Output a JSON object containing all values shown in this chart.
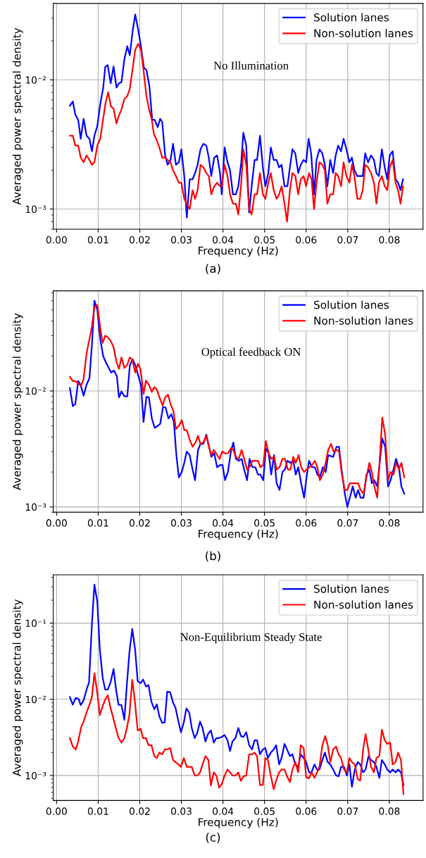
{
  "chart_data": [
    {
      "type": "line",
      "xlabel": "Frequency (Hz)",
      "ylabel": "Averaged power spectral density",
      "annotations": [
        "No Illumination",
        "(a)"
      ],
      "log": "y",
      "grid": true,
      "legend": "top right",
      "xlim": [
        -0.0008,
        0.0881
      ],
      "xticks": [
        {
          "value": 0,
          "label": "0.00"
        },
        {
          "value": 0.01,
          "label": "0.01"
        },
        {
          "value": 0.02,
          "label": "0.02"
        },
        {
          "value": 0.03,
          "label": "0.03"
        },
        {
          "value": 0.04,
          "label": "0.04"
        },
        {
          "value": 0.05,
          "label": "0.05"
        },
        {
          "value": 0.06,
          "label": "0.06"
        },
        {
          "value": 0.07,
          "label": "0.07"
        },
        {
          "value": 0.08,
          "label": "0.08"
        }
      ],
      "ylim": [
        0.0007,
        0.039
      ],
      "yticks": [
        {
          "value": 0.001,
          "label": "10⁻³"
        },
        {
          "value": 0.01,
          "label": "10⁻²"
        }
      ],
      "series": [
        {
          "name": "Solution lanes",
          "color": "#0000ff",
          "x": [
            0.0032,
            0.0039,
            0.0045,
            0.0052,
            0.0058,
            0.0065,
            0.0072,
            0.0079,
            0.0085,
            0.0091,
            0.0098,
            0.0105,
            0.0112,
            0.0117,
            0.0123,
            0.013,
            0.0137,
            0.0144,
            0.015,
            0.0156,
            0.0163,
            0.017,
            0.0176,
            0.0183,
            0.0189,
            0.0196,
            0.0203,
            0.021,
            0.0216,
            0.0223,
            0.023,
            0.0236,
            0.0243,
            0.0249,
            0.0254,
            0.0261,
            0.0267,
            0.0274,
            0.028,
            0.0287,
            0.0294,
            0.03,
            0.0307,
            0.0313,
            0.032,
            0.0327,
            0.0333,
            0.0339,
            0.0346,
            0.0353,
            0.036,
            0.0366,
            0.0372,
            0.0379,
            0.0386,
            0.0393,
            0.0397,
            0.0404,
            0.0411,
            0.0417,
            0.0424,
            0.0431,
            0.0437,
            0.0444,
            0.0449,
            0.0456,
            0.0463,
            0.0469,
            0.0476,
            0.0482,
            0.0489,
            0.0496,
            0.0502,
            0.0509,
            0.0515,
            0.0522,
            0.0529,
            0.0535,
            0.0541,
            0.0548,
            0.0555,
            0.0561,
            0.0567,
            0.0574,
            0.0581,
            0.0587,
            0.0594,
            0.06,
            0.0606,
            0.0612,
            0.0619,
            0.0625,
            0.0632,
            0.0639,
            0.0645,
            0.0651,
            0.0658,
            0.0665,
            0.0671,
            0.0677,
            0.0684,
            0.069,
            0.0697,
            0.0704,
            0.071,
            0.0716,
            0.0723,
            0.073,
            0.0736,
            0.0742,
            0.0749,
            0.0756,
            0.0763,
            0.0769,
            0.0775,
            0.0782,
            0.0789,
            0.0795,
            0.0801,
            0.0808,
            0.0815,
            0.0821,
            0.0827,
            0.0833
          ],
          "values": [
            0.0063,
            0.0068,
            0.0054,
            0.0049,
            0.0035,
            0.005,
            0.0037,
            0.0035,
            0.0028,
            0.0037,
            0.0044,
            0.0065,
            0.0086,
            0.0126,
            0.013,
            0.0094,
            0.0127,
            0.0087,
            0.0094,
            0.0096,
            0.0144,
            0.0182,
            0.0155,
            0.024,
            0.032,
            0.0247,
            0.018,
            0.0124,
            0.0119,
            0.009,
            0.0049,
            0.0049,
            0.0043,
            0.005,
            0.0047,
            0.0026,
            0.0022,
            0.0024,
            0.0032,
            0.0022,
            0.0023,
            0.0029,
            0.0018,
            0.00086,
            0.0017,
            0.0017,
            0.0019,
            0.0022,
            0.0029,
            0.0032,
            0.0031,
            0.0025,
            0.0018,
            0.0025,
            0.0026,
            0.0019,
            0.0013,
            0.003,
            0.0023,
            0.002,
            0.0013,
            0.0013,
            0.0015,
            0.0023,
            0.0039,
            0.0031,
            0.00094,
            0.0015,
            0.0024,
            0.0024,
            0.0037,
            0.0021,
            0.0015,
            0.0019,
            0.003,
            0.0024,
            0.0024,
            0.0021,
            0.0022,
            0.0015,
            0.0015,
            0.0021,
            0.0029,
            0.0027,
            0.0019,
            0.0022,
            0.0024,
            0.0023,
            0.0035,
            0.0027,
            0.0013,
            0.0024,
            0.0029,
            0.0027,
            0.0022,
            0.0015,
            0.0024,
            0.0019,
            0.0026,
            0.0031,
            0.0028,
            0.0035,
            0.0029,
            0.0023,
            0.0025,
            0.002,
            0.0018,
            0.0018,
            0.0018,
            0.0027,
            0.0023,
            0.0026,
            0.0024,
            0.0019,
            0.0018,
            0.0029,
            0.0021,
            0.0017,
            0.0026,
            0.0028,
            0.0017,
            0.0016,
            0.0014,
            0.0017
          ]
        },
        {
          "name": "Non-solution lanes",
          "color": "#ff0000",
          "x": [
            0.0032,
            0.0039,
            0.0045,
            0.0052,
            0.0058,
            0.0065,
            0.0072,
            0.0079,
            0.0085,
            0.0091,
            0.0098,
            0.0105,
            0.0112,
            0.0118,
            0.0124,
            0.0131,
            0.0137,
            0.0144,
            0.015,
            0.0156,
            0.0163,
            0.017,
            0.0176,
            0.0183,
            0.0189,
            0.0196,
            0.0203,
            0.0209,
            0.0216,
            0.0222,
            0.0229,
            0.0234,
            0.0241,
            0.0247,
            0.0254,
            0.0261,
            0.0267,
            0.0274,
            0.028,
            0.0287,
            0.0294,
            0.03,
            0.0307,
            0.0313,
            0.032,
            0.0327,
            0.0333,
            0.0339,
            0.0346,
            0.0353,
            0.036,
            0.0366,
            0.0372,
            0.0379,
            0.0386,
            0.0393,
            0.0397,
            0.0404,
            0.0411,
            0.0417,
            0.0424,
            0.0431,
            0.0437,
            0.0444,
            0.0449,
            0.0456,
            0.0463,
            0.0469,
            0.0476,
            0.0482,
            0.0489,
            0.0496,
            0.0502,
            0.0509,
            0.0515,
            0.0522,
            0.0529,
            0.0535,
            0.0541,
            0.0548,
            0.0554,
            0.0561,
            0.0567,
            0.0574,
            0.0581,
            0.0587,
            0.0594,
            0.06,
            0.0607,
            0.0613,
            0.0619,
            0.0625,
            0.0632,
            0.0639,
            0.0645,
            0.0651,
            0.0658,
            0.0665,
            0.0671,
            0.0677,
            0.0684,
            0.069,
            0.0697,
            0.0704,
            0.071,
            0.0716,
            0.0723,
            0.073,
            0.0736,
            0.0742,
            0.0749,
            0.0756,
            0.0763,
            0.0769,
            0.0775,
            0.0782,
            0.0789,
            0.0795,
            0.0801,
            0.0808,
            0.0815,
            0.0821,
            0.0827,
            0.0833
          ],
          "values": [
            0.0037,
            0.0037,
            0.0031,
            0.0031,
            0.0025,
            0.0023,
            0.0026,
            0.0024,
            0.0022,
            0.0023,
            0.0031,
            0.0035,
            0.005,
            0.0067,
            0.008,
            0.0062,
            0.006,
            0.0046,
            0.0053,
            0.0059,
            0.0071,
            0.0075,
            0.0085,
            0.0123,
            0.017,
            0.019,
            0.017,
            0.0119,
            0.0075,
            0.006,
            0.0049,
            0.0038,
            0.0034,
            0.003,
            0.0025,
            0.0025,
            0.0024,
            0.0023,
            0.002,
            0.0018,
            0.0016,
            0.0016,
            0.0012,
            0.0011,
            0.001,
            0.0014,
            0.0012,
            0.0014,
            0.0022,
            0.0021,
            0.0019,
            0.0018,
            0.0013,
            0.0015,
            0.0016,
            0.0015,
            0.0015,
            0.0022,
            0.0018,
            0.0013,
            0.0011,
            0.0011,
            0.00091,
            0.0016,
            0.0029,
            0.0022,
            0.001,
            0.00091,
            0.0013,
            0.0013,
            0.0019,
            0.0013,
            0.0012,
            0.0016,
            0.0019,
            0.0014,
            0.0012,
            0.0013,
            0.0015,
            0.0011,
            0.0008,
            0.0014,
            0.0019,
            0.0018,
            0.0013,
            0.0017,
            0.0018,
            0.0015,
            0.0019,
            0.0017,
            0.001,
            0.0016,
            0.0023,
            0.0022,
            0.002,
            0.0011,
            0.0013,
            0.0013,
            0.0019,
            0.0018,
            0.0015,
            0.0023,
            0.0018,
            0.0016,
            0.0022,
            0.0018,
            0.0012,
            0.0012,
            0.0014,
            0.0022,
            0.0021,
            0.0019,
            0.0016,
            0.0011,
            0.0016,
            0.0018,
            0.0015,
            0.0014,
            0.0021,
            0.0024,
            0.0016,
            0.0014,
            0.0011,
            0.0015
          ]
        }
      ]
    },
    {
      "type": "line",
      "xlabel": "Frequency (Hz)",
      "ylabel": "Averaged power spectral density",
      "annotations": [
        "Optical feedback ON",
        "(b)"
      ],
      "log": "y",
      "grid": true,
      "legend": "top right",
      "xlim": [
        -0.0008,
        0.0881
      ],
      "xticks": [
        {
          "value": 0,
          "label": "0.00"
        },
        {
          "value": 0.01,
          "label": "0.01"
        },
        {
          "value": 0.02,
          "label": "0.02"
        },
        {
          "value": 0.03,
          "label": "0.03"
        },
        {
          "value": 0.04,
          "label": "0.04"
        },
        {
          "value": 0.05,
          "label": "0.05"
        },
        {
          "value": 0.06,
          "label": "0.06"
        },
        {
          "value": 0.07,
          "label": "0.07"
        },
        {
          "value": 0.08,
          "label": "0.08"
        }
      ],
      "ylim": [
        0.0009,
        0.073
      ],
      "yticks": [
        {
          "value": 0.001,
          "label": "10⁻³"
        },
        {
          "value": 0.01,
          "label": "10⁻²"
        }
      ],
      "series": [
        {
          "name": "Solution lanes",
          "color": "#0000ff",
          "x": [
            0.0032,
            0.0039,
            0.0045,
            0.0052,
            0.0058,
            0.0065,
            0.0072,
            0.0079,
            0.0085,
            0.0091,
            0.0098,
            0.0105,
            0.0112,
            0.0118,
            0.0125,
            0.0131,
            0.0138,
            0.0145,
            0.015,
            0.0156,
            0.0163,
            0.017,
            0.0176,
            0.0183,
            0.0189,
            0.0196,
            0.0203,
            0.0209,
            0.0216,
            0.0222,
            0.0229,
            0.0236,
            0.0243,
            0.0249,
            0.0256,
            0.0262,
            0.0269,
            0.0276,
            0.0282,
            0.0288,
            0.0294,
            0.0301,
            0.0307,
            0.0313,
            0.032,
            0.0327,
            0.0333,
            0.034,
            0.0346,
            0.0353,
            0.036,
            0.0366,
            0.0372,
            0.0379,
            0.0386,
            0.0393,
            0.0399,
            0.0405,
            0.0412,
            0.0419,
            0.0425,
            0.0431,
            0.0438,
            0.0445,
            0.0451,
            0.0458,
            0.0464,
            0.0471,
            0.0478,
            0.0484,
            0.049,
            0.0497,
            0.0503,
            0.051,
            0.0516,
            0.0523,
            0.0529,
            0.0536,
            0.0543,
            0.0549,
            0.0555,
            0.0562,
            0.0569,
            0.0575,
            0.0581,
            0.0588,
            0.0595,
            0.0601,
            0.0607,
            0.0614,
            0.0621,
            0.0627,
            0.0633,
            0.064,
            0.0647,
            0.0653,
            0.0665,
            0.0673,
            0.0679,
            0.0686,
            0.0693,
            0.0699,
            0.0705,
            0.0712,
            0.0719,
            0.0725,
            0.0731,
            0.0738,
            0.0745,
            0.0752,
            0.0758,
            0.0764,
            0.0771,
            0.0783,
            0.079,
            0.0797,
            0.0803,
            0.081,
            0.0816,
            0.0823,
            0.0829,
            0.0836
          ],
          "values": [
            0.0106,
            0.0074,
            0.0077,
            0.0122,
            0.0112,
            0.0091,
            0.0113,
            0.0129,
            0.025,
            0.06,
            0.05,
            0.028,
            0.02,
            0.0178,
            0.0159,
            0.0144,
            0.015,
            0.0134,
            0.0088,
            0.0099,
            0.009,
            0.009,
            0.0166,
            0.0187,
            0.0168,
            0.0137,
            0.0112,
            0.0054,
            0.0089,
            0.0088,
            0.0058,
            0.0048,
            0.005,
            0.0052,
            0.0073,
            0.0072,
            0.0058,
            0.0063,
            0.0054,
            0.0028,
            0.0018,
            0.002,
            0.0024,
            0.003,
            0.0028,
            0.0021,
            0.0017,
            0.0031,
            0.0035,
            0.0035,
            0.0042,
            0.0034,
            0.0027,
            0.0029,
            0.0022,
            0.0023,
            0.0023,
            0.0017,
            0.002,
            0.003,
            0.0036,
            0.0026,
            0.0025,
            0.0026,
            0.0021,
            0.0017,
            0.0026,
            0.0022,
            0.0022,
            0.0019,
            0.0019,
            0.0017,
            0.0032,
            0.0029,
            0.0019,
            0.0028,
            0.0016,
            0.0014,
            0.002,
            0.0021,
            0.0025,
            0.0024,
            0.0025,
            0.0019,
            0.0022,
            0.0016,
            0.0012,
            0.0018,
            0.0025,
            0.0022,
            0.0022,
            0.0019,
            0.0018,
            0.0022,
            0.002,
            0.0028,
            0.0027,
            0.0033,
            0.0033,
            0.002,
            0.0013,
            0.001,
            0.0012,
            0.0015,
            0.0012,
            0.0014,
            0.0012,
            0.0012,
            0.0019,
            0.0021,
            0.0016,
            0.0017,
            0.0015,
            0.0039,
            0.0033,
            0.0015,
            0.0017,
            0.0021,
            0.0026,
            0.0022,
            0.0015,
            0.0013
          ]
        },
        {
          "name": "Non-solution lanes",
          "color": "#ff0000",
          "x": [
            0.0032,
            0.0039,
            0.0046,
            0.0053,
            0.0059,
            0.0065,
            0.0072,
            0.0079,
            0.0085,
            0.0091,
            0.0098,
            0.0105,
            0.0111,
            0.0117,
            0.0123,
            0.013,
            0.0137,
            0.0144,
            0.015,
            0.0156,
            0.0163,
            0.017,
            0.0176,
            0.0182,
            0.0189,
            0.0196,
            0.0202,
            0.0209,
            0.0215,
            0.0222,
            0.0229,
            0.0235,
            0.0241,
            0.0248,
            0.0255,
            0.0261,
            0.0268,
            0.0274,
            0.0281,
            0.0287,
            0.0294,
            0.0301,
            0.0307,
            0.0313,
            0.032,
            0.0327,
            0.0334,
            0.034,
            0.0346,
            0.0353,
            0.036,
            0.0366,
            0.0372,
            0.0378,
            0.0386,
            0.0392,
            0.0398,
            0.0405,
            0.0412,
            0.0419,
            0.0425,
            0.0431,
            0.0438,
            0.0445,
            0.0451,
            0.0458,
            0.0464,
            0.0471,
            0.0478,
            0.0484,
            0.049,
            0.0497,
            0.0503,
            0.051,
            0.0516,
            0.0523,
            0.0529,
            0.0536,
            0.0543,
            0.0549,
            0.0556,
            0.0562,
            0.0569,
            0.0575,
            0.0582,
            0.0588,
            0.0595,
            0.0601,
            0.0608,
            0.0614,
            0.0621,
            0.0627,
            0.0633,
            0.064,
            0.0647,
            0.0653,
            0.066,
            0.0666,
            0.0673,
            0.0679,
            0.0686,
            0.0693,
            0.0699,
            0.0705,
            0.0712,
            0.0719,
            0.0725,
            0.0731,
            0.0738,
            0.0745,
            0.0752,
            0.0758,
            0.0764,
            0.0771,
            0.0777,
            0.0783,
            0.079,
            0.0797,
            0.0803,
            0.081,
            0.0816,
            0.0823,
            0.0829,
            0.0836
          ],
          "values": [
            0.0132,
            0.0122,
            0.0121,
            0.0115,
            0.0111,
            0.0127,
            0.021,
            0.028,
            0.036,
            0.053,
            0.055,
            0.035,
            0.026,
            0.03,
            0.029,
            0.027,
            0.024,
            0.0178,
            0.0155,
            0.0195,
            0.0158,
            0.0168,
            0.0195,
            0.0187,
            0.0144,
            0.0172,
            0.0153,
            0.0094,
            0.0123,
            0.0113,
            0.0098,
            0.0108,
            0.0103,
            0.0087,
            0.0075,
            0.0088,
            0.0093,
            0.0077,
            0.0067,
            0.0047,
            0.005,
            0.0056,
            0.0046,
            0.0046,
            0.0038,
            0.0033,
            0.0036,
            0.0041,
            0.0035,
            0.0036,
            0.0041,
            0.0033,
            0.0028,
            0.0031,
            0.0028,
            0.0026,
            0.003,
            0.0029,
            0.0029,
            0.0032,
            0.0031,
            0.0027,
            0.0026,
            0.0031,
            0.0026,
            0.0021,
            0.0022,
            0.0025,
            0.0025,
            0.0025,
            0.0022,
            0.0023,
            0.0037,
            0.0029,
            0.0026,
            0.0027,
            0.0021,
            0.0022,
            0.0026,
            0.0026,
            0.0021,
            0.0021,
            0.0027,
            0.0024,
            0.0028,
            0.0022,
            0.002,
            0.0021,
            0.0022,
            0.0023,
            0.0025,
            0.0022,
            0.0017,
            0.0019,
            0.0024,
            0.0031,
            0.0035,
            0.003,
            0.0031,
            0.003,
            0.0019,
            0.0014,
            0.0014,
            0.0016,
            0.0016,
            0.0016,
            0.0016,
            0.0014,
            0.0013,
            0.0018,
            0.0024,
            0.002,
            0.0015,
            0.0012,
            0.0026,
            0.0059,
            0.0042,
            0.0017,
            0.002,
            0.0019,
            0.0024,
            0.0021,
            0.0024,
            0.0018
          ]
        }
      ]
    },
    {
      "type": "line",
      "xlabel": "Frequency (Hz)",
      "ylabel": "Averaged power spectral density",
      "annotations": [
        "Non-Equilibrium Steady State",
        "(c)"
      ],
      "log": "y",
      "grid": true,
      "legend": "top right",
      "xlim": [
        -0.0008,
        0.0881
      ],
      "xticks": [
        {
          "value": 0,
          "label": "0.00"
        },
        {
          "value": 0.01,
          "label": "0.01"
        },
        {
          "value": 0.02,
          "label": "0.02"
        },
        {
          "value": 0.03,
          "label": "0.03"
        },
        {
          "value": 0.04,
          "label": "0.04"
        },
        {
          "value": 0.05,
          "label": "0.05"
        },
        {
          "value": 0.06,
          "label": "0.06"
        },
        {
          "value": 0.07,
          "label": "0.07"
        },
        {
          "value": 0.08,
          "label": "0.08"
        }
      ],
      "ylim": [
        0.00047,
        0.43
      ],
      "yticks": [
        {
          "value": 0.001,
          "label": "10⁻³"
        },
        {
          "value": 0.01,
          "label": "10⁻²"
        },
        {
          "value": 0.1,
          "label": "10⁻¹"
        }
      ],
      "series": [
        {
          "name": "Solution lanes",
          "color": "#0000ff",
          "x": [
            0.0032,
            0.0039,
            0.0046,
            0.0053,
            0.0058,
            0.0065,
            0.0072,
            0.0078,
            0.0085,
            0.0091,
            0.0098,
            0.0104,
            0.0111,
            0.0117,
            0.0123,
            0.013,
            0.0137,
            0.0143,
            0.0149,
            0.0156,
            0.0163,
            0.0169,
            0.0175,
            0.0182,
            0.0189,
            0.0195,
            0.0202,
            0.0208,
            0.0215,
            0.0221,
            0.0228,
            0.0235,
            0.0241,
            0.0247,
            0.0254,
            0.026,
            0.0266,
            0.0273,
            0.028,
            0.0286,
            0.0293,
            0.0299,
            0.0306,
            0.0312,
            0.0319,
            0.0325,
            0.0332,
            0.0338,
            0.0345,
            0.0351,
            0.0358,
            0.0364,
            0.0371,
            0.0378,
            0.0384,
            0.039,
            0.0397,
            0.0404,
            0.0411,
            0.0417,
            0.0423,
            0.043,
            0.0437,
            0.0443,
            0.0449,
            0.0456,
            0.0463,
            0.047,
            0.0476,
            0.0482,
            0.0489,
            0.0496,
            0.0502,
            0.0508,
            0.0515,
            0.0522,
            0.0528,
            0.0535,
            0.0541,
            0.0548,
            0.0554,
            0.0561,
            0.0567,
            0.0574,
            0.0581,
            0.0587,
            0.0594,
            0.06,
            0.0607,
            0.0613,
            0.062,
            0.0626,
            0.0632,
            0.0639,
            0.0645,
            0.0652,
            0.0658,
            0.0665,
            0.0672,
            0.0678,
            0.0684,
            0.0691,
            0.0698,
            0.0704,
            0.071,
            0.0717,
            0.0724,
            0.073,
            0.0737,
            0.0743,
            0.075,
            0.0756,
            0.0763,
            0.0769,
            0.0776,
            0.0782,
            0.0789,
            0.0795,
            0.0802,
            0.0808,
            0.0815,
            0.0821,
            0.0828,
            0.0834
          ],
          "values": [
            0.0107,
            0.0085,
            0.0104,
            0.0101,
            0.0084,
            0.0097,
            0.0134,
            0.0166,
            0.098,
            0.32,
            0.19,
            0.045,
            0.0189,
            0.0134,
            0.0134,
            0.0169,
            0.025,
            0.0134,
            0.0085,
            0.0084,
            0.0054,
            0.0156,
            0.041,
            0.084,
            0.044,
            0.0173,
            0.0163,
            0.0182,
            0.0147,
            0.0154,
            0.0093,
            0.0074,
            0.0086,
            0.006,
            0.0049,
            0.005,
            0.0126,
            0.0124,
            0.0091,
            0.0077,
            0.0051,
            0.0037,
            0.005,
            0.0076,
            0.0067,
            0.0042,
            0.0031,
            0.0036,
            0.0051,
            0.0042,
            0.0028,
            0.0035,
            0.0039,
            0.0027,
            0.0031,
            0.0031,
            0.0032,
            0.0034,
            0.0029,
            0.0021,
            0.0028,
            0.0031,
            0.0042,
            0.0033,
            0.0032,
            0.0037,
            0.0025,
            0.0022,
            0.0029,
            0.0029,
            0.0019,
            0.0022,
            0.0023,
            0.0017,
            0.002,
            0.0022,
            0.0025,
            0.0014,
            0.0017,
            0.0026,
            0.0022,
            0.0018,
            0.0019,
            0.0014,
            0.0013,
            0.0019,
            0.0017,
            0.0015,
            0.0011,
            0.0011,
            0.0014,
            0.0012,
            0.0012,
            0.0016,
            0.002,
            0.0015,
            0.0014,
            0.0012,
            0.001,
            0.00098,
            0.0013,
            0.0013,
            0.001,
            0.0014,
            0.00071,
            0.0012,
            0.0015,
            0.0014,
            0.0011,
            0.0012,
            0.0018,
            0.0016,
            0.0015,
            0.0013,
            0.00093,
            0.0016,
            0.0014,
            0.0012,
            0.0011,
            0.0012,
            0.0011,
            0.0012,
            0.0011,
            0.00075
          ]
        },
        {
          "name": "Non-solution lanes",
          "color": "#ff0000",
          "x": [
            0.0032,
            0.0039,
            0.0046,
            0.0052,
            0.0059,
            0.0065,
            0.0072,
            0.0078,
            0.0085,
            0.0091,
            0.0098,
            0.0104,
            0.0111,
            0.0117,
            0.0123,
            0.013,
            0.0137,
            0.0143,
            0.0149,
            0.0156,
            0.0163,
            0.0169,
            0.0175,
            0.0182,
            0.0188,
            0.0195,
            0.0202,
            0.0208,
            0.0215,
            0.0221,
            0.0228,
            0.0235,
            0.0241,
            0.0247,
            0.0254,
            0.026,
            0.0267,
            0.0273,
            0.028,
            0.0286,
            0.0293,
            0.0299,
            0.0306,
            0.0313,
            0.0319,
            0.0325,
            0.0332,
            0.0339,
            0.0345,
            0.0351,
            0.0358,
            0.0365,
            0.0371,
            0.0378,
            0.0384,
            0.0391,
            0.0397,
            0.0404,
            0.0411,
            0.0417,
            0.0423,
            0.043,
            0.0437,
            0.0443,
            0.0449,
            0.0456,
            0.0463,
            0.047,
            0.0476,
            0.0482,
            0.0489,
            0.0496,
            0.0502,
            0.0508,
            0.0515,
            0.0522,
            0.0528,
            0.0535,
            0.0541,
            0.0548,
            0.0555,
            0.0561,
            0.0567,
            0.0574,
            0.0581,
            0.0587,
            0.0594,
            0.06,
            0.0607,
            0.0613,
            0.062,
            0.0626,
            0.0632,
            0.0639,
            0.0646,
            0.0652,
            0.0658,
            0.0665,
            0.0672,
            0.0678,
            0.0684,
            0.0691,
            0.0698,
            0.0704,
            0.071,
            0.0717,
            0.0724,
            0.073,
            0.0737,
            0.0743,
            0.075,
            0.0756,
            0.0763,
            0.0769,
            0.0776,
            0.0782,
            0.0789,
            0.0795,
            0.0802,
            0.0808,
            0.0815,
            0.0821,
            0.0828,
            0.0834
          ],
          "values": [
            0.0031,
            0.0024,
            0.0022,
            0.0028,
            0.0043,
            0.0051,
            0.0067,
            0.0082,
            0.0107,
            0.022,
            0.012,
            0.0062,
            0.0082,
            0.01,
            0.0113,
            0.0076,
            0.0055,
            0.0041,
            0.0031,
            0.0027,
            0.0031,
            0.0042,
            0.0062,
            0.018,
            0.0098,
            0.0039,
            0.0041,
            0.0031,
            0.0031,
            0.0025,
            0.0025,
            0.0018,
            0.0017,
            0.002,
            0.0019,
            0.0022,
            0.0022,
            0.0023,
            0.0016,
            0.0015,
            0.0014,
            0.0013,
            0.0017,
            0.0013,
            0.0013,
            0.0013,
            0.001,
            0.001,
            0.0011,
            0.0014,
            0.0018,
            0.0016,
            0.00074,
            0.0011,
            0.001,
            0.00069,
            0.00077,
            0.001,
            0.0012,
            0.0011,
            0.001,
            0.001,
            0.0011,
            0.00085,
            0.00097,
            0.001,
            0.0019,
            0.0019,
            0.002,
            0.0018,
            0.00075,
            0.00075,
            0.0017,
            0.0016,
            0.001,
            0.00066,
            0.00086,
            0.0011,
            0.0012,
            0.0012,
            0.00095,
            0.00082,
            0.0012,
            0.0015,
            0.0011,
            0.0025,
            0.0023,
            0.00095,
            0.00092,
            0.0011,
            0.00093,
            0.0011,
            0.0013,
            0.0025,
            0.0033,
            0.0025,
            0.0015,
            0.0022,
            0.0024,
            0.0019,
            0.0017,
            0.0012,
            0.0011,
            0.0017,
            0.0015,
            0.0014,
            0.0009,
            0.00086,
            0.0022,
            0.0035,
            0.0021,
            0.0013,
            0.0011,
            0.0017,
            0.0018,
            0.004,
            0.0029,
            0.0026,
            0.0027,
            0.0014,
            0.0015,
            0.002,
            0.0016,
            0.00057
          ]
        }
      ]
    }
  ]
}
